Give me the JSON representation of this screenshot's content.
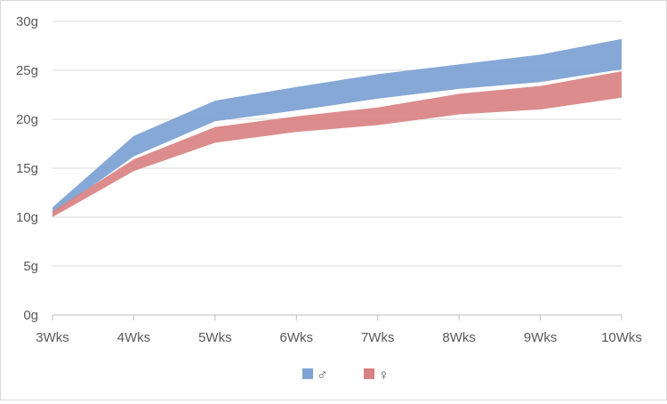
{
  "chart_data": {
    "type": "area",
    "categories": [
      "3Wks",
      "4Wks",
      "5Wks",
      "6Wks",
      "7Wks",
      "8Wks",
      "9Wks",
      "10Wks"
    ],
    "ylim": [
      0,
      30
    ],
    "yticks": [
      0,
      5,
      10,
      15,
      20,
      25,
      30
    ],
    "ytick_labels": [
      "0g",
      "5g",
      "10g",
      "15g",
      "20g",
      "25g",
      "30g"
    ],
    "grid": "horizontal",
    "legend_position": "bottom",
    "series": [
      {
        "name": "♂",
        "color": "#7FA3D4",
        "lower": [
          10.3,
          16.2,
          19.8,
          20.9,
          22.1,
          23.1,
          23.8,
          25.1
        ],
        "upper": [
          11.0,
          18.3,
          21.9,
          23.3,
          24.6,
          25.6,
          26.6,
          28.2
        ]
      },
      {
        "name": "♀",
        "color": "#D98282",
        "lower": [
          10.0,
          14.7,
          17.6,
          18.7,
          19.4,
          20.5,
          21.0,
          22.2
        ],
        "upper": [
          10.6,
          15.9,
          19.2,
          20.3,
          21.2,
          22.6,
          23.4,
          24.9
        ]
      }
    ]
  }
}
